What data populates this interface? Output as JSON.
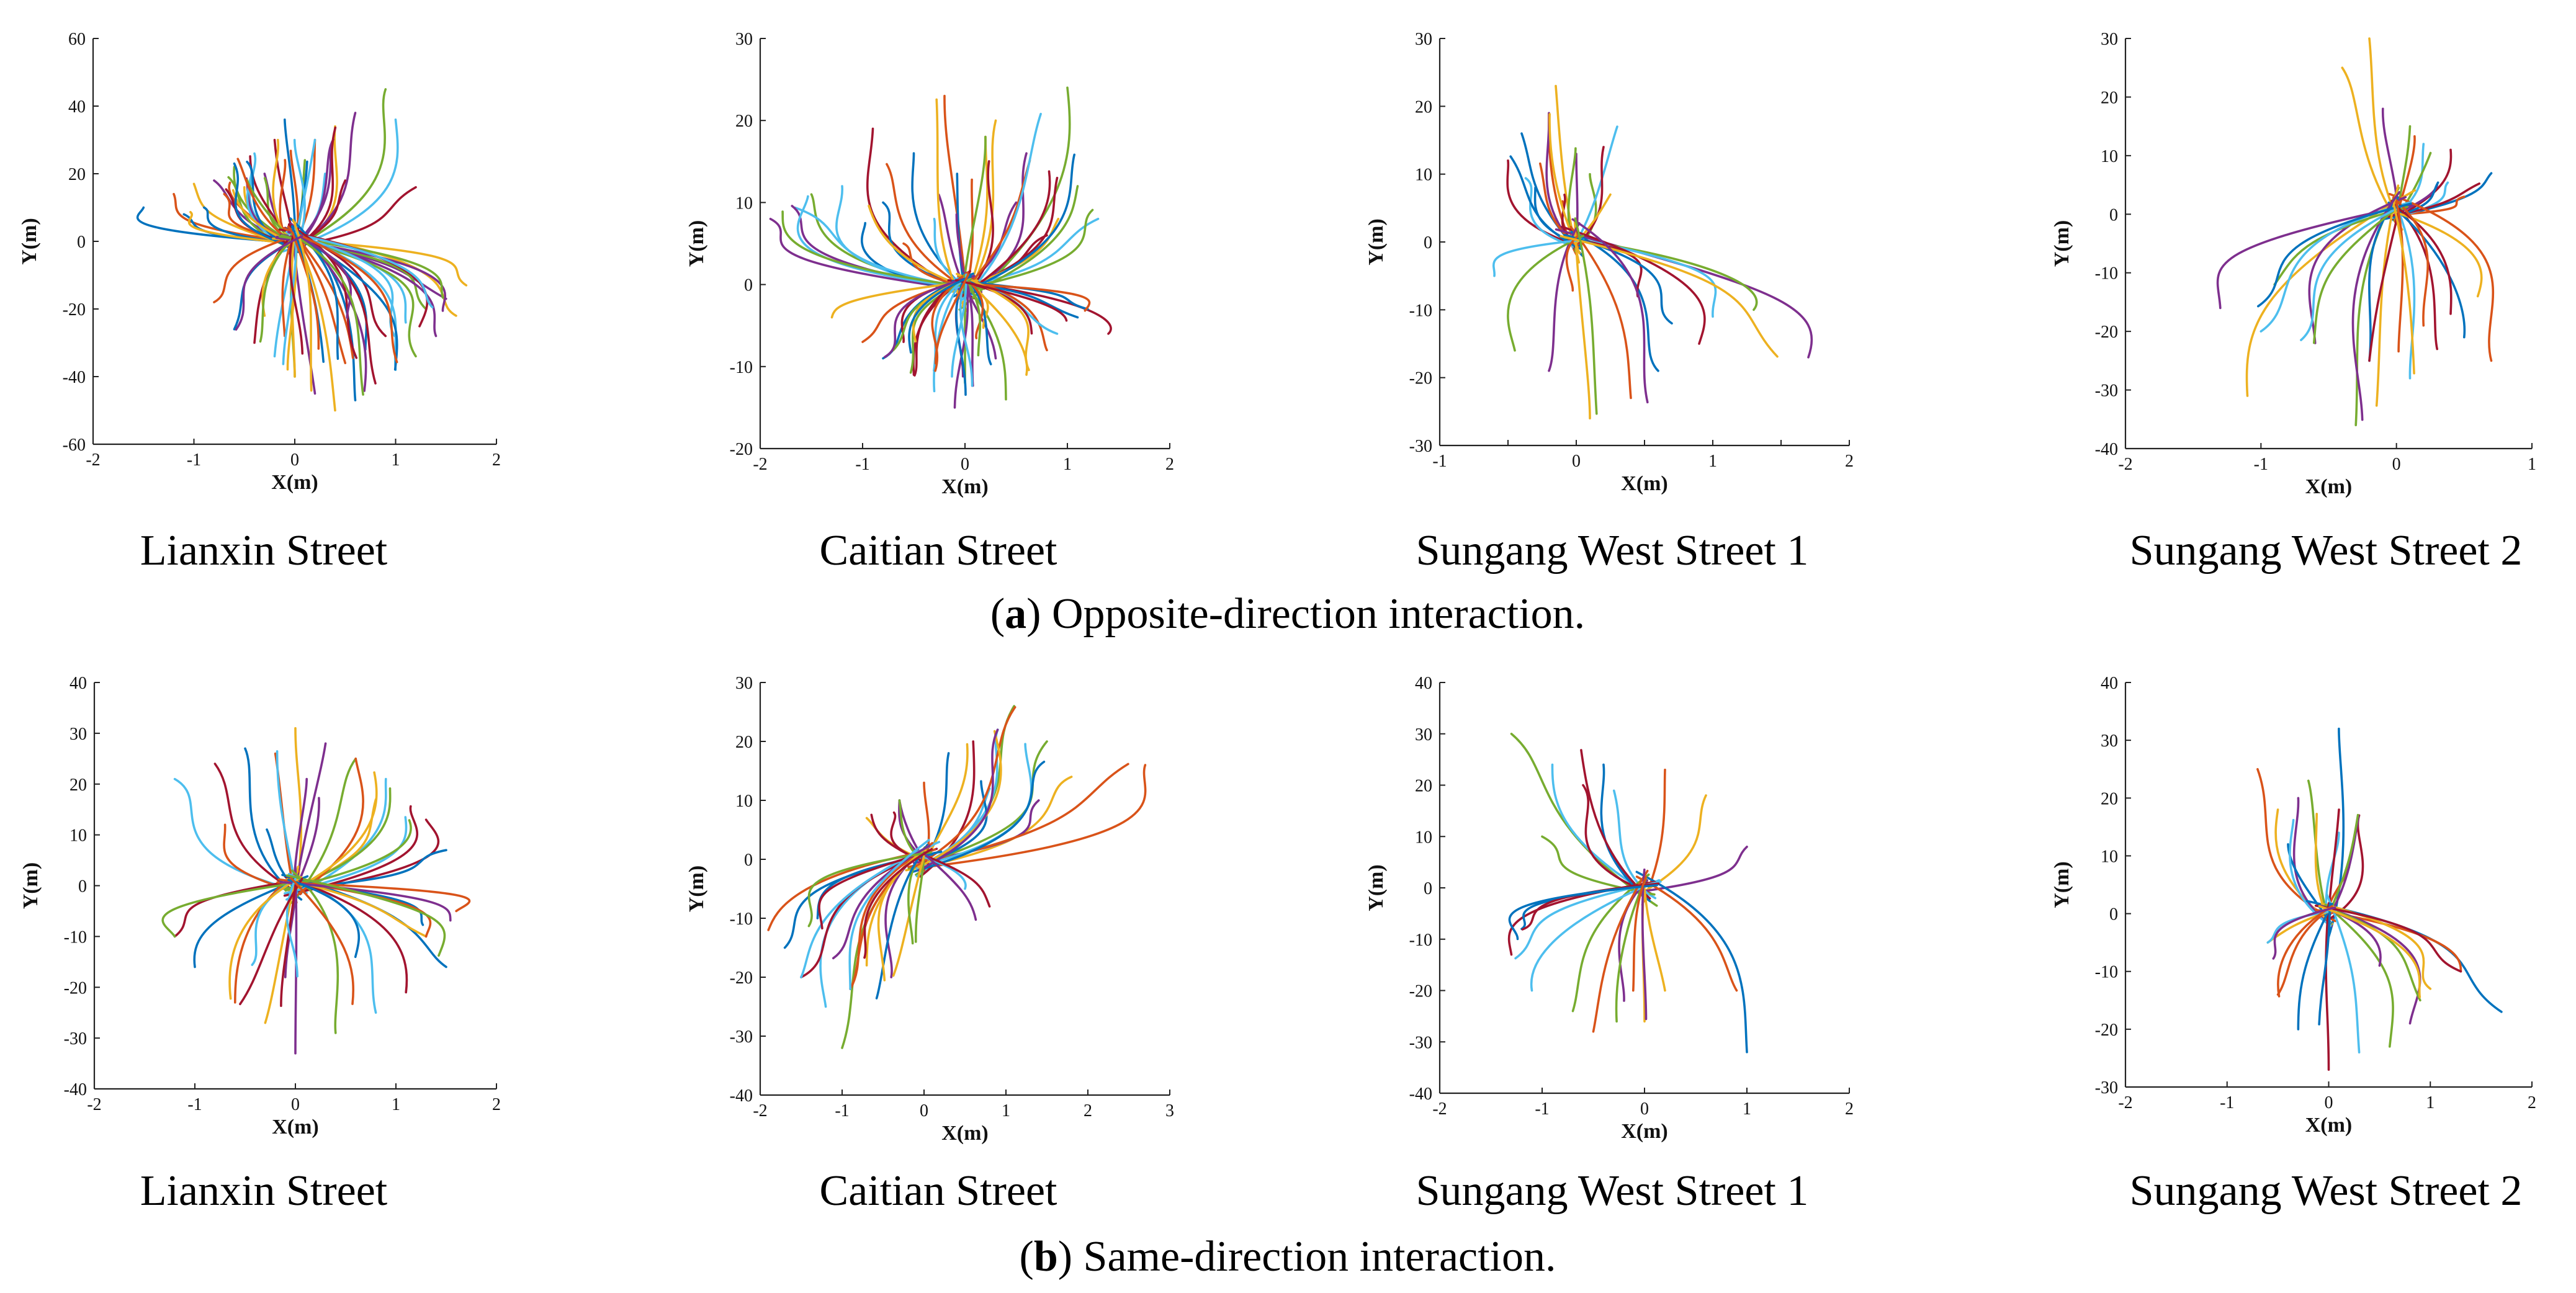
{
  "figure": {
    "row_a_caption_letter": "a",
    "row_a_caption_text": ") Opposite-direction interaction.",
    "row_b_caption_letter": "b",
    "row_b_caption_text": ") Same-direction interaction."
  },
  "colors": [
    "#0072BD",
    "#D95319",
    "#EDB120",
    "#7E2F8E",
    "#77AC30",
    "#4DBEEE",
    "#A2142F"
  ],
  "chart_data": [
    {
      "type": "line",
      "panel": "a",
      "caption": "Lianxin Street",
      "xlabel": "X(m)",
      "ylabel": "Y(m)",
      "xlim": [
        -2,
        2
      ],
      "ylim": [
        -60,
        60
      ],
      "xticks": [
        -2,
        -1,
        0,
        1,
        2
      ],
      "yticks": [
        -60,
        -40,
        -20,
        0,
        20,
        40,
        60
      ],
      "series": [
        {
          "name": "upper",
          "n": 44,
          "ends": [
            [
              -1.5,
              10
            ],
            [
              -1.2,
              14
            ],
            [
              -1.0,
              17
            ],
            [
              -0.8,
              18
            ],
            [
              -0.6,
              22
            ],
            [
              -0.4,
              26
            ],
            [
              -0.2,
              30
            ],
            [
              -0.1,
              36
            ],
            [
              0.2,
              30
            ],
            [
              0.4,
              34
            ],
            [
              0.6,
              38
            ],
            [
              0.9,
              45
            ],
            [
              1.0,
              36
            ],
            [
              1.2,
              16
            ],
            [
              -0.9,
              10
            ],
            [
              -0.7,
              14
            ],
            [
              -0.5,
              16
            ],
            [
              -0.3,
              20
            ],
            [
              0.1,
              24
            ],
            [
              0.3,
              20
            ],
            [
              0.5,
              18
            ],
            [
              -1.1,
              8
            ]
          ]
        },
        {
          "name": "lower",
          "n": 44,
          "ends": [
            [
              1.7,
              -13
            ],
            [
              1.5,
              -17
            ],
            [
              1.3,
              -20
            ],
            [
              1.1,
              -24
            ],
            [
              0.9,
              -28
            ],
            [
              0.7,
              -32
            ],
            [
              0.5,
              -36
            ],
            [
              0.4,
              -50
            ],
            [
              0.2,
              -45
            ],
            [
              0.0,
              -40
            ],
            [
              -0.2,
              -34
            ],
            [
              -0.4,
              -30
            ],
            [
              -0.6,
              -26
            ],
            [
              -0.8,
              -18
            ],
            [
              1.6,
              -22
            ],
            [
              1.4,
              -28
            ],
            [
              1.2,
              -34
            ],
            [
              1.0,
              -38
            ],
            [
              0.8,
              -42
            ],
            [
              0.6,
              -47
            ],
            [
              -0.1,
              -28
            ],
            [
              -0.3,
              -22
            ]
          ]
        }
      ]
    },
    {
      "type": "line",
      "panel": "a",
      "caption": "Caitian Street",
      "xlabel": "X(m)",
      "ylabel": "Y(m)",
      "xlim": [
        -2,
        2
      ],
      "ylim": [
        -20,
        30
      ],
      "xticks": [
        -2,
        -1,
        0,
        1,
        2
      ],
      "yticks": [
        -20,
        -10,
        0,
        10,
        20,
        30
      ],
      "series": [
        {
          "name": "upper",
          "n": 38,
          "ends": [
            [
              -1.9,
              8
            ],
            [
              -1.5,
              11
            ],
            [
              -1.2,
              12
            ],
            [
              -0.9,
              19
            ],
            [
              -0.5,
              16
            ],
            [
              -0.2,
              23
            ],
            [
              0.3,
              20
            ],
            [
              0.6,
              16
            ],
            [
              1.0,
              24
            ],
            [
              1.3,
              8
            ],
            [
              0.9,
              13
            ],
            [
              -0.8,
              10
            ],
            [
              -0.6,
              5
            ],
            [
              0.2,
              18
            ],
            [
              0.5,
              10
            ],
            [
              1.1,
              12
            ],
            [
              -0.3,
              8
            ],
            [
              0.8,
              6
            ]
          ]
        },
        {
          "name": "lower",
          "n": 38,
          "ends": [
            [
              1.4,
              -6
            ],
            [
              1.1,
              -4
            ],
            [
              0.8,
              -8
            ],
            [
              0.6,
              -11
            ],
            [
              0.3,
              -9
            ],
            [
              0.0,
              -12
            ],
            [
              -0.3,
              -13
            ],
            [
              -0.5,
              -11
            ],
            [
              -0.8,
              -9
            ],
            [
              -1.0,
              -7
            ],
            [
              -1.3,
              -4
            ],
            [
              -0.1,
              -15
            ],
            [
              0.4,
              -14
            ],
            [
              0.9,
              -6
            ],
            [
              -0.6,
              -7
            ],
            [
              1.2,
              -3
            ]
          ]
        }
      ]
    },
    {
      "type": "line",
      "panel": "a",
      "caption": "Sungang West Street 1",
      "xlabel": "X(m)",
      "ylabel": "Y(m)",
      "xlim": [
        -1,
        2
      ],
      "ylim": [
        -30,
        30
      ],
      "xticks": [
        -1,
        -0.5,
        0,
        0.5,
        1,
        1.5,
        2
      ],
      "xticklabels": [
        "-1",
        "",
        "0",
        "",
        "1",
        "",
        "2"
      ],
      "yticks": [
        -30,
        -20,
        -10,
        0,
        10,
        20,
        30
      ],
      "series": [
        {
          "name": "upper",
          "n": 18,
          "ends": [
            [
              -0.5,
              12
            ],
            [
              -0.4,
              16
            ],
            [
              -0.2,
              19
            ],
            [
              -0.15,
              23
            ],
            [
              0.0,
              13
            ],
            [
              0.1,
              10
            ],
            [
              0.3,
              17
            ],
            [
              0.2,
              14
            ],
            [
              -0.3,
              8
            ],
            [
              -0.1,
              6
            ],
            [
              0.25,
              7
            ]
          ]
        },
        {
          "name": "lower",
          "n": 16,
          "ends": [
            [
              1.7,
              -17
            ],
            [
              1.3,
              -10
            ],
            [
              1.0,
              -11
            ],
            [
              0.9,
              -15
            ],
            [
              0.6,
              -19
            ],
            [
              0.4,
              -23
            ],
            [
              0.1,
              -26
            ],
            [
              -0.2,
              -19
            ],
            [
              -0.45,
              -16
            ],
            [
              -0.6,
              -5
            ],
            [
              0.45,
              -8
            ],
            [
              0.7,
              -12
            ]
          ]
        }
      ]
    },
    {
      "type": "line",
      "panel": "a",
      "caption": "Sungang West Street 2",
      "xlabel": "X(m)",
      "ylabel": "Y(m)",
      "xlim": [
        -2,
        1
      ],
      "ylim": [
        -40,
        30
      ],
      "xticks": [
        -2,
        -1,
        0,
        1
      ],
      "yticks": [
        -40,
        -30,
        -20,
        -10,
        0,
        10,
        20,
        30
      ],
      "series": [
        {
          "name": "upper",
          "n": 14,
          "ends": [
            [
              -0.2,
              30
            ],
            [
              -0.1,
              18
            ],
            [
              0.1,
              15
            ],
            [
              0.2,
              12
            ],
            [
              0.4,
              11
            ],
            [
              0.7,
              7
            ],
            [
              0.5,
              3
            ],
            [
              -0.4,
              25
            ],
            [
              0.3,
              5
            ]
          ]
        },
        {
          "name": "lower",
          "n": 22,
          "ends": [
            [
              -1.1,
              -31
            ],
            [
              -1.3,
              -16
            ],
            [
              -0.3,
              -36
            ],
            [
              0.1,
              -28
            ],
            [
              0.3,
              -23
            ],
            [
              0.5,
              -21
            ],
            [
              0.7,
              -25
            ],
            [
              0.6,
              -14
            ],
            [
              -0.6,
              -22
            ],
            [
              -0.9,
              -12
            ],
            [
              -1.0,
              -20
            ],
            [
              0.4,
              -17
            ],
            [
              -0.2,
              -25
            ],
            [
              0.2,
              -19
            ]
          ]
        }
      ]
    },
    {
      "type": "line",
      "panel": "b",
      "caption": "Lianxin Street",
      "xlabel": "X(m)",
      "ylabel": "Y(m)",
      "xlim": [
        -2,
        2
      ],
      "ylim": [
        -40,
        40
      ],
      "xticks": [
        -2,
        -1,
        0,
        1,
        2
      ],
      "yticks": [
        -40,
        -30,
        -20,
        -10,
        0,
        10,
        20,
        30,
        40
      ],
      "series": [
        {
          "name": "upper",
          "n": 22,
          "ends": [
            [
              -1.2,
              21
            ],
            [
              -0.8,
              24
            ],
            [
              -0.5,
              27
            ],
            [
              -0.2,
              26
            ],
            [
              0.0,
              31
            ],
            [
              0.3,
              28
            ],
            [
              0.6,
              25
            ],
            [
              0.9,
              21
            ],
            [
              1.3,
              13
            ],
            [
              1.5,
              7
            ],
            [
              -0.7,
              12
            ],
            [
              0.8,
              17
            ]
          ]
        },
        {
          "name": "lower",
          "n": 24,
          "ends": [
            [
              -1.2,
              -10
            ],
            [
              -1.0,
              -16
            ],
            [
              -0.6,
              -23
            ],
            [
              -0.3,
              -27
            ],
            [
              0.0,
              -33
            ],
            [
              0.4,
              -29
            ],
            [
              0.8,
              -25
            ],
            [
              1.1,
              -21
            ],
            [
              1.5,
              -16
            ],
            [
              1.6,
              -5
            ],
            [
              1.3,
              -10
            ],
            [
              -0.1,
              -18
            ]
          ]
        }
      ]
    },
    {
      "type": "line",
      "panel": "b",
      "caption": "Caitian Street",
      "xlabel": "X(m)",
      "ylabel": "Y(m)",
      "xlim": [
        -2,
        3
      ],
      "ylim": [
        -40,
        30
      ],
      "xticks": [
        -2,
        -1,
        0,
        1,
        2,
        3
      ],
      "yticks": [
        -40,
        -30,
        -20,
        -10,
        0,
        10,
        20,
        30
      ],
      "series": [
        {
          "name": "upper",
          "n": 24,
          "ends": [
            [
              2.7,
              16
            ],
            [
              1.8,
              14
            ],
            [
              1.4,
              10
            ],
            [
              1.1,
              26
            ],
            [
              0.9,
              22
            ],
            [
              0.6,
              20
            ],
            [
              0.3,
              18
            ],
            [
              0.0,
              13
            ],
            [
              -0.7,
              7
            ],
            [
              -0.3,
              10
            ],
            [
              1.5,
              20
            ],
            [
              0.8,
              12
            ]
          ]
        },
        {
          "name": "lower",
          "n": 24,
          "ends": [
            [
              -1.0,
              -32
            ],
            [
              -1.2,
              -25
            ],
            [
              -1.5,
              -20
            ],
            [
              -1.7,
              -15
            ],
            [
              -1.9,
              -12
            ],
            [
              -0.7,
              -18
            ],
            [
              -0.4,
              -20
            ],
            [
              -0.1,
              -14
            ],
            [
              0.5,
              -5
            ],
            [
              0.8,
              -8
            ],
            [
              -1.3,
              -10
            ],
            [
              -0.9,
              -22
            ]
          ]
        }
      ]
    },
    {
      "type": "line",
      "panel": "b",
      "caption": "Sungang West Street 1",
      "xlabel": "X(m)",
      "ylabel": "Y(m)",
      "xlim": [
        -2,
        2
      ],
      "ylim": [
        -40,
        40
      ],
      "xticks": [
        -2,
        -1,
        0,
        1,
        2
      ],
      "yticks": [
        -40,
        -30,
        -20,
        -10,
        0,
        10,
        20,
        30,
        40
      ],
      "series": [
        {
          "name": "upper",
          "n": 10,
          "ends": [
            [
              -1.3,
              30
            ],
            [
              -0.9,
              24
            ],
            [
              -0.6,
              20
            ],
            [
              -0.4,
              24
            ],
            [
              0.2,
              23
            ],
            [
              0.6,
              18
            ],
            [
              1.0,
              8
            ],
            [
              -1.0,
              10
            ]
          ]
        },
        {
          "name": "lower",
          "n": 16,
          "ends": [
            [
              1.0,
              -32
            ],
            [
              0.9,
              -20
            ],
            [
              0.2,
              -20
            ],
            [
              -0.2,
              -22
            ],
            [
              -0.7,
              -24
            ],
            [
              -1.1,
              -20
            ],
            [
              -1.3,
              -13
            ],
            [
              -1.2,
              -8
            ],
            [
              -0.5,
              -28
            ],
            [
              0.0,
              -26
            ]
          ]
        }
      ]
    },
    {
      "type": "line",
      "panel": "b",
      "caption": "Sungang West Street 2",
      "xlabel": "X(m)",
      "ylabel": "Y(m)",
      "xlim": [
        -2,
        2
      ],
      "ylim": [
        -30,
        40
      ],
      "xticks": [
        -2,
        -1,
        0,
        1,
        2
      ],
      "yticks": [
        -30,
        -20,
        -10,
        0,
        10,
        20,
        30,
        40
      ],
      "series": [
        {
          "name": "upper",
          "n": 14,
          "ends": [
            [
              0.1,
              32
            ],
            [
              -0.7,
              25
            ],
            [
              -0.5,
              18
            ],
            [
              -0.3,
              20
            ],
            [
              -0.2,
              23
            ],
            [
              0.1,
              14
            ],
            [
              0.3,
              17
            ],
            [
              -0.4,
              12
            ],
            [
              0.2,
              8
            ]
          ]
        },
        {
          "name": "lower",
          "n": 18,
          "ends": [
            [
              1.7,
              -17
            ],
            [
              1.3,
              -10
            ],
            [
              1.0,
              -13
            ],
            [
              0.8,
              -19
            ],
            [
              0.6,
              -23
            ],
            [
              0.3,
              -24
            ],
            [
              0.0,
              -27
            ],
            [
              -0.3,
              -20
            ],
            [
              -0.5,
              -14
            ],
            [
              -0.6,
              -5
            ],
            [
              0.5,
              -9
            ],
            [
              0.9,
              -15
            ]
          ]
        }
      ]
    }
  ]
}
